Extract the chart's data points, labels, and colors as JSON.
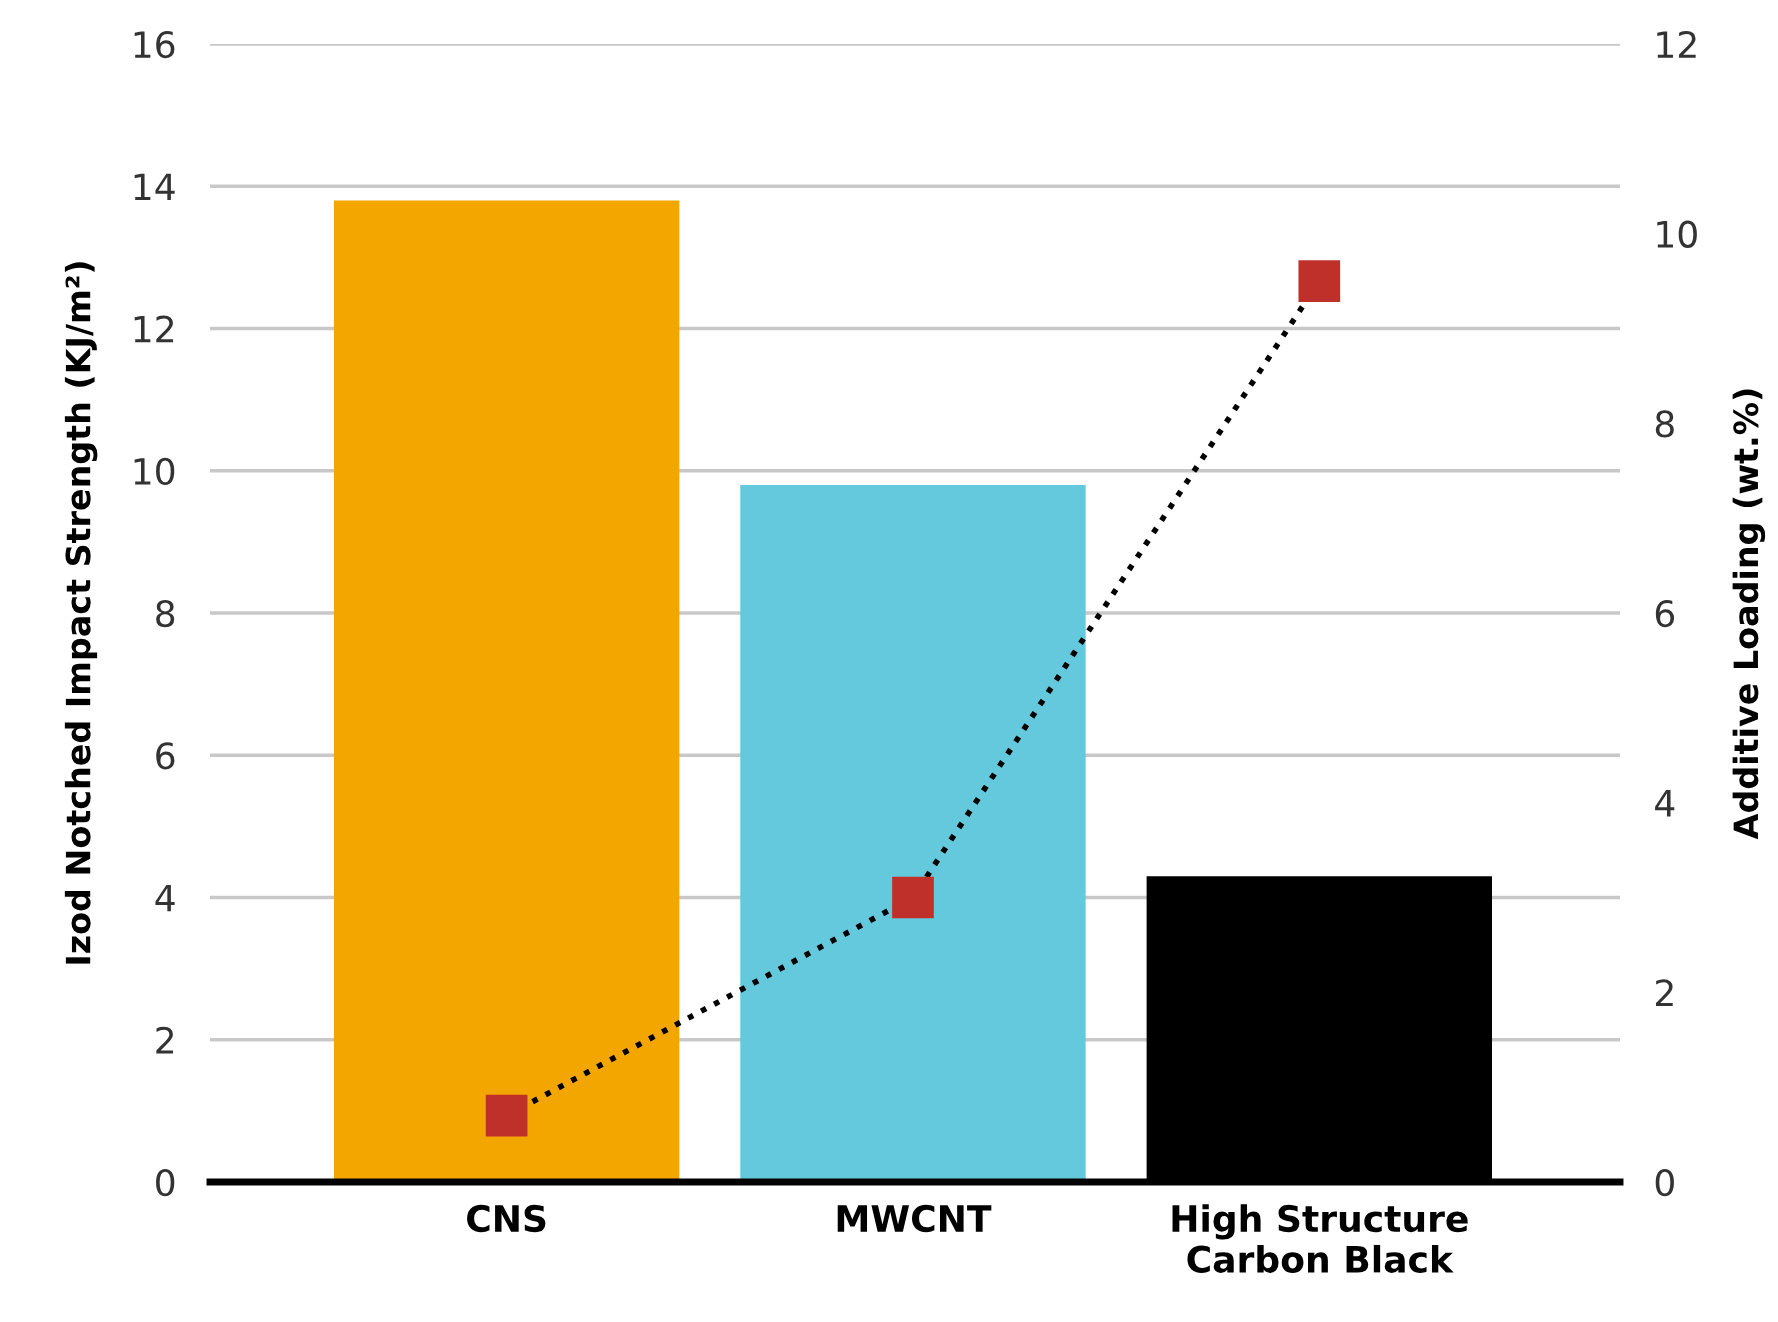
{
  "chart_data": {
    "type": "bar",
    "categories": [
      "CNS",
      "MWCNT",
      "High Structure\nCarbon Black"
    ],
    "ylabel": "Izod Notched Impact Strength (KJ/m²)",
    "y2label": "Additive Loading (wt.%)",
    "series": [
      {
        "colors": [
          "#f3a600",
          "#64c9dd",
          "#000000"
        ],
        "values": [
          13.8,
          9.8,
          4.3
        ]
      },
      {
        "type": "line",
        "axis": "y2",
        "color": "#c0302b",
        "marker": "square",
        "line_style": "dotted",
        "values": [
          0.7,
          3.0,
          9.5
        ]
      }
    ],
    "ylim": [
      0,
      16
    ],
    "yticks": [
      0,
      2,
      4,
      6,
      8,
      10,
      12,
      14,
      16
    ],
    "y2lim": [
      0,
      12
    ],
    "y2ticks": [
      0,
      2,
      4,
      6,
      8,
      10,
      12
    ],
    "grid": "y"
  }
}
